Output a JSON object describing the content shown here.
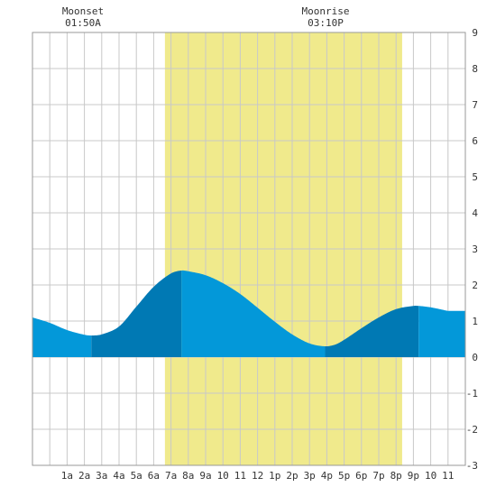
{
  "chart_data": {
    "type": "area",
    "xlabel": "",
    "ylabel": "",
    "ylim": [
      -3,
      9
    ],
    "xlim_hours": [
      -1,
      24
    ],
    "yticks": [
      -3,
      -2,
      -1,
      0,
      1,
      2,
      3,
      4,
      5,
      6,
      7,
      8,
      9
    ],
    "xticks": [
      {
        "hour": 1,
        "label": "1a"
      },
      {
        "hour": 2,
        "label": "2a"
      },
      {
        "hour": 3,
        "label": "3a"
      },
      {
        "hour": 4,
        "label": "4a"
      },
      {
        "hour": 5,
        "label": "5a"
      },
      {
        "hour": 6,
        "label": "6a"
      },
      {
        "hour": 7,
        "label": "7a"
      },
      {
        "hour": 8,
        "label": "8a"
      },
      {
        "hour": 9,
        "label": "9a"
      },
      {
        "hour": 10,
        "label": "10"
      },
      {
        "hour": 11,
        "label": "11"
      },
      {
        "hour": 12,
        "label": "12"
      },
      {
        "hour": 13,
        "label": "1p"
      },
      {
        "hour": 14,
        "label": "2p"
      },
      {
        "hour": 15,
        "label": "3p"
      },
      {
        "hour": 16,
        "label": "4p"
      },
      {
        "hour": 17,
        "label": "5p"
      },
      {
        "hour": 18,
        "label": "6p"
      },
      {
        "hour": 19,
        "label": "7p"
      },
      {
        "hour": 20,
        "label": "8p"
      },
      {
        "hour": 21,
        "label": "9p"
      },
      {
        "hour": 22,
        "label": "10"
      },
      {
        "hour": 23,
        "label": "11"
      }
    ],
    "grid": true,
    "daylight": {
      "start_hour": 6.65,
      "end_hour": 20.35
    },
    "tide_extremes": [
      {
        "hour": 2.4,
        "height": 0.6,
        "kind": "low"
      },
      {
        "hour": 7.6,
        "height": 2.4,
        "kind": "high"
      },
      {
        "hour": 15.9,
        "height": 0.3,
        "kind": "low"
      },
      {
        "hour": 21.3,
        "height": 1.4,
        "kind": "high"
      }
    ],
    "series": [
      {
        "values": [
          {
            "hour": -1,
            "height": 1.1
          },
          {
            "hour": 0,
            "height": 0.95
          },
          {
            "hour": 1,
            "height": 0.75
          },
          {
            "hour": 2,
            "height": 0.62
          },
          {
            "hour": 2.4,
            "height": 0.6
          },
          {
            "hour": 3,
            "height": 0.63
          },
          {
            "hour": 4,
            "height": 0.85
          },
          {
            "hour": 5,
            "height": 1.4
          },
          {
            "hour": 6,
            "height": 1.95
          },
          {
            "hour": 7,
            "height": 2.32
          },
          {
            "hour": 7.6,
            "height": 2.4
          },
          {
            "hour": 8,
            "height": 2.38
          },
          {
            "hour": 9,
            "height": 2.27
          },
          {
            "hour": 10,
            "height": 2.05
          },
          {
            "hour": 11,
            "height": 1.75
          },
          {
            "hour": 12,
            "height": 1.37
          },
          {
            "hour": 13,
            "height": 0.98
          },
          {
            "hour": 14,
            "height": 0.63
          },
          {
            "hour": 15,
            "height": 0.38
          },
          {
            "hour": 15.9,
            "height": 0.3
          },
          {
            "hour": 16.5,
            "height": 0.35
          },
          {
            "hour": 17,
            "height": 0.48
          },
          {
            "hour": 18,
            "height": 0.8
          },
          {
            "hour": 19,
            "height": 1.1
          },
          {
            "hour": 20,
            "height": 1.33
          },
          {
            "hour": 21,
            "height": 1.42
          },
          {
            "hour": 21.3,
            "height": 1.42
          },
          {
            "hour": 22,
            "height": 1.38
          },
          {
            "hour": 23,
            "height": 1.28
          }
        ]
      }
    ],
    "annotations": [
      {
        "title": "Moonset",
        "time": "01:50A",
        "hour": 2.5
      },
      {
        "title": "Moonrise",
        "time": "03:10P",
        "hour": 15.8
      }
    ],
    "colors": {
      "daylight": "#f0ea8c",
      "tide_light": "#0398d9",
      "tide_dark": "#0079b4",
      "grid": "#c8c8c8",
      "frame": "#999999",
      "text": "#333333"
    }
  }
}
